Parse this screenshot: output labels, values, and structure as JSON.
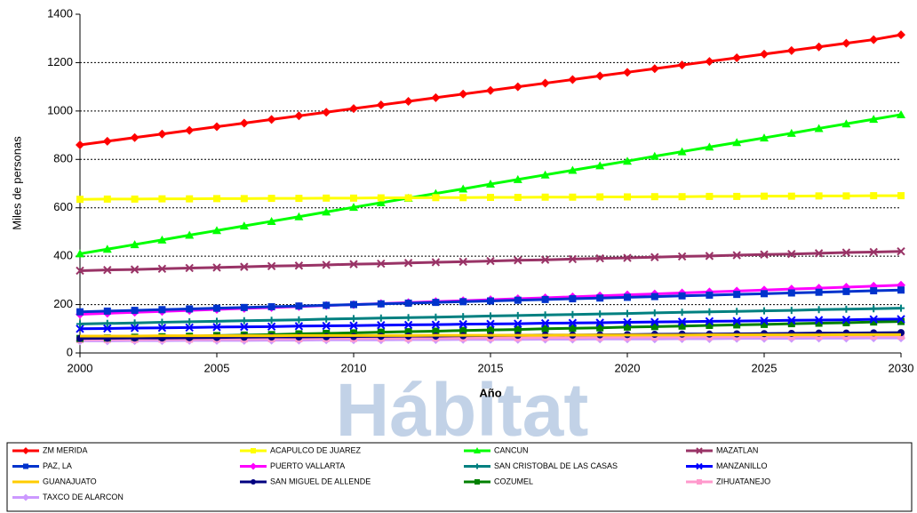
{
  "chart_data": {
    "type": "line",
    "watermark": "Hábitat",
    "y_label": "Miles de personas",
    "x_label": "Año",
    "x": [
      2000,
      2001,
      2002,
      2003,
      2004,
      2005,
      2006,
      2007,
      2008,
      2009,
      2010,
      2011,
      2012,
      2013,
      2014,
      2015,
      2016,
      2017,
      2018,
      2019,
      2020,
      2021,
      2022,
      2023,
      2024,
      2025,
      2026,
      2027,
      2028,
      2029,
      2030
    ],
    "xlim": [
      2000,
      2030
    ],
    "xticks": [
      2000,
      2005,
      2010,
      2015,
      2020,
      2025,
      2030
    ],
    "ylim": [
      0,
      1400
    ],
    "yticks": [
      0,
      200,
      400,
      600,
      800,
      1000,
      1200,
      1400
    ],
    "grid": true,
    "series": [
      {
        "name": "ZM MERIDA",
        "color": "#ff0000",
        "marker": "diamond",
        "values": [
          860,
          875,
          890,
          905,
          920,
          935,
          950,
          965,
          980,
          995,
          1010,
          1025,
          1040,
          1055,
          1070,
          1085,
          1100,
          1115,
          1130,
          1145,
          1160,
          1175,
          1190,
          1205,
          1220,
          1235,
          1250,
          1265,
          1280,
          1295,
          1315
        ]
      },
      {
        "name": "ACAPULCO DE JUAREZ",
        "color": "#ffff00",
        "marker": "square",
        "values": [
          635,
          636,
          636,
          637,
          637,
          638,
          638,
          639,
          639,
          640,
          640,
          641,
          641,
          642,
          642,
          643,
          643,
          644,
          644,
          645,
          645,
          646,
          646,
          647,
          647,
          648,
          648,
          649,
          649,
          650,
          650
        ]
      },
      {
        "name": "CANCUN",
        "color": "#00ff00",
        "marker": "triangle",
        "values": [
          410,
          429,
          448,
          467,
          487,
          506,
          525,
          544,
          563,
          583,
          602,
          621,
          640,
          659,
          678,
          698,
          717,
          736,
          755,
          774,
          793,
          813,
          832,
          851,
          870,
          889,
          908,
          928,
          947,
          966,
          985
        ]
      },
      {
        "name": "MAZATLAN",
        "color": "#993366",
        "marker": "x",
        "values": [
          340,
          343,
          345,
          348,
          351,
          353,
          356,
          359,
          361,
          364,
          367,
          369,
          372,
          375,
          377,
          380,
          383,
          385,
          388,
          391,
          393,
          396,
          399,
          401,
          404,
          407,
          409,
          412,
          415,
          417,
          420
        ]
      },
      {
        "name": "PAZ, LA",
        "color": "#0033cc",
        "marker": "square",
        "values": [
          170,
          173,
          176,
          179,
          182,
          185,
          188,
          191,
          194,
          197,
          200,
          203,
          206,
          209,
          212,
          215,
          218,
          221,
          224,
          227,
          230,
          233,
          236,
          239,
          242,
          245,
          248,
          251,
          254,
          257,
          260
        ]
      },
      {
        "name": "PUERTO VALLARTA",
        "color": "#ff00ff",
        "marker": "diamond",
        "values": [
          160,
          164,
          168,
          172,
          176,
          180,
          184,
          188,
          192,
          196,
          200,
          204,
          208,
          212,
          216,
          220,
          224,
          228,
          232,
          236,
          240,
          244,
          248,
          252,
          256,
          260,
          264,
          268,
          272,
          276,
          280
        ]
      },
      {
        "name": "SAN CRISTOBAL DE LAS CASAS",
        "color": "#008080",
        "marker": "plus",
        "values": [
          120,
          122,
          124,
          127,
          129,
          131,
          133,
          135,
          137,
          140,
          142,
          144,
          146,
          148,
          150,
          153,
          155,
          157,
          159,
          161,
          163,
          166,
          168,
          170,
          172,
          174,
          176,
          179,
          181,
          183,
          185
        ]
      },
      {
        "name": "MANZANILLO",
        "color": "#0000ff",
        "marker": "x",
        "values": [
          100,
          101,
          103,
          104,
          105,
          107,
          108,
          109,
          111,
          112,
          113,
          115,
          116,
          117,
          119,
          120,
          121,
          123,
          124,
          125,
          127,
          128,
          129,
          131,
          132,
          133,
          135,
          136,
          137,
          139,
          140
        ]
      },
      {
        "name": "GUANAJUATO",
        "color": "#ffcc00",
        "marker": "none",
        "values": [
          70,
          70,
          70,
          71,
          71,
          71,
          71,
          71,
          72,
          72,
          72,
          72,
          72,
          73,
          73,
          73,
          73,
          73,
          74,
          74,
          74,
          74,
          74,
          75,
          75,
          75,
          75,
          75,
          76,
          76,
          76
        ]
      },
      {
        "name": "SAN MIGUEL DE ALLENDE",
        "color": "#000080",
        "marker": "circle",
        "values": [
          60,
          61,
          62,
          62,
          63,
          64,
          65,
          66,
          66,
          67,
          68,
          69,
          70,
          70,
          71,
          72,
          73,
          74,
          74,
          75,
          76,
          77,
          78,
          78,
          79,
          80,
          81,
          82,
          82,
          83,
          84
        ]
      },
      {
        "name": "COZUMEL",
        "color": "#008000",
        "marker": "square",
        "values": [
          60,
          62,
          65,
          67,
          69,
          72,
          74,
          76,
          79,
          81,
          83,
          86,
          88,
          90,
          93,
          95,
          97,
          100,
          102,
          104,
          107,
          109,
          111,
          114,
          116,
          118,
          121,
          123,
          125,
          128,
          130
        ]
      },
      {
        "name": "ZIHUATANEJO",
        "color": "#ff99cc",
        "marker": "square",
        "values": [
          55,
          56,
          56,
          57,
          57,
          58,
          58,
          59,
          59,
          60,
          60,
          61,
          61,
          62,
          62,
          63,
          63,
          64,
          64,
          65,
          65,
          66,
          66,
          67,
          67,
          68,
          68,
          69,
          69,
          70,
          70
        ]
      },
      {
        "name": "TAXCO DE ALARCON",
        "color": "#cc99ff",
        "marker": "diamond",
        "values": [
          50,
          50,
          51,
          51,
          52,
          52,
          52,
          53,
          53,
          54,
          54,
          54,
          55,
          55,
          56,
          56,
          56,
          57,
          57,
          58,
          58,
          58,
          59,
          59,
          60,
          60,
          60,
          61,
          61,
          62,
          62
        ]
      }
    ]
  }
}
